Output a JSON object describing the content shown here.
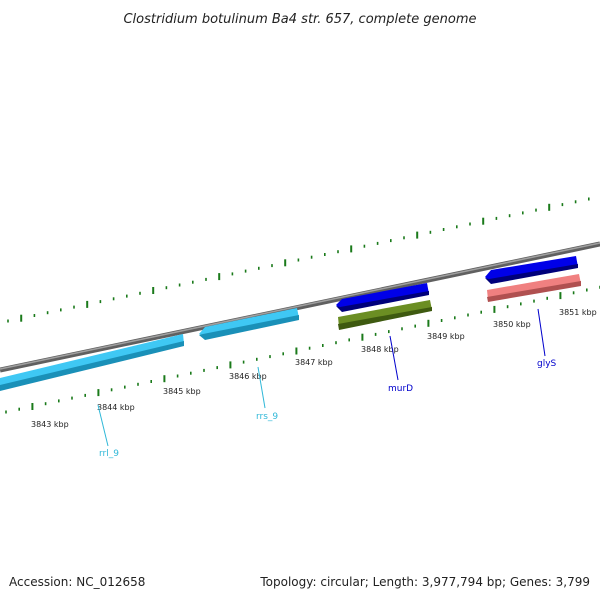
{
  "title": "Clostridium botulinum Ba4 str. 657, complete genome",
  "footer": {
    "accession": "Accession: NC_012658",
    "summary": "Topology: circular; Length: 3,977,794 bp; Genes: 3,799"
  },
  "ruler": {
    "unit": "kbp",
    "labels": [
      "3843 kbp",
      "3844 kbp",
      "3845 kbp",
      "3846 kbp",
      "3847 kbp",
      "3848 kbp",
      "3849 kbp",
      "3850 kbp",
      "3851 kbp"
    ]
  },
  "genes": [
    {
      "name": "rrl_9",
      "color": "#00b0e0"
    },
    {
      "name": "rrs_9",
      "color": "#30b8d8"
    },
    {
      "name": "murD",
      "color": "#0000cc"
    },
    {
      "name": "glyS",
      "color": "#0000cc"
    }
  ],
  "features": [
    {
      "kind": "rRNA",
      "color": "#3fc8f4"
    },
    {
      "kind": "rRNA",
      "color": "#3fc8f4"
    },
    {
      "kind": "CDS",
      "color": "#0000e8"
    },
    {
      "kind": "CDS",
      "color": "#6b8e23"
    },
    {
      "kind": "CDS",
      "color": "#0000e8"
    },
    {
      "kind": "tRNA",
      "color": "#f08080"
    }
  ],
  "colors": {
    "backbone": "#808080",
    "ticks": "#1a7a1a",
    "background": "#ffffff"
  }
}
